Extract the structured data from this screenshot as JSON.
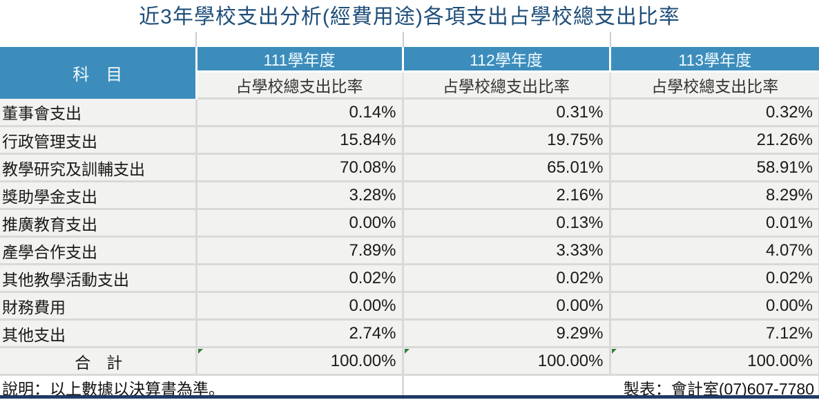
{
  "page": {
    "title": "近3年學校支出分析(經費用途)各項支出占學校總支出比率"
  },
  "table": {
    "corner_header": "科　目",
    "year_headers": [
      "111學年度",
      "112學年度",
      "113學年度"
    ],
    "sub_header": "占學校總支出比率",
    "rows": [
      {
        "label": "董事會支出",
        "values": [
          "0.14%",
          "0.31%",
          "0.32%"
        ]
      },
      {
        "label": "行政管理支出",
        "values": [
          "15.84%",
          "19.75%",
          "21.26%"
        ]
      },
      {
        "label": "教學研究及訓輔支出",
        "values": [
          "70.08%",
          "65.01%",
          "58.91%"
        ]
      },
      {
        "label": "獎助學金支出",
        "values": [
          "3.28%",
          "2.16%",
          "8.29%"
        ]
      },
      {
        "label": "推廣教育支出",
        "values": [
          "0.00%",
          "0.13%",
          "0.01%"
        ]
      },
      {
        "label": "產學合作支出",
        "values": [
          "7.89%",
          "3.33%",
          "4.07%"
        ]
      },
      {
        "label": "其他教學活動支出",
        "values": [
          "0.02%",
          "0.02%",
          "0.02%"
        ]
      },
      {
        "label": "財務費用",
        "values": [
          "0.00%",
          "0.00%",
          "0.00%"
        ]
      },
      {
        "label": "其他支出",
        "values": [
          "2.74%",
          "9.29%",
          "7.12%"
        ]
      }
    ],
    "total": {
      "label": "合　計",
      "values": [
        "100.00%",
        "100.00%",
        "100.00%"
      ]
    }
  },
  "footer": {
    "note": "說明：以上數據以決算書為準。",
    "prepared_by": "製表：會計室(07)607-7780"
  },
  "colors": {
    "title_text": "#1F4E79",
    "header_fill": "#3C8DBC",
    "header_text": "#F2FAFE",
    "cell_fill": "#F2F2F0",
    "grid_line": "#D9D9D9",
    "comment_triangle": "#2F7D31",
    "bottom_bar": "#1F3B64"
  },
  "chart_data": {
    "type": "table",
    "title": "近3年學校支出分析(經費用途)各項支出占學校總支出比率",
    "columns": [
      "科目",
      "111學年度 占學校總支出比率",
      "112學年度 占學校總支出比率",
      "113學年度 占學校總支出比率"
    ],
    "rows": [
      [
        "董事會支出",
        "0.14%",
        "0.31%",
        "0.32%"
      ],
      [
        "行政管理支出",
        "15.84%",
        "19.75%",
        "21.26%"
      ],
      [
        "教學研究及訓輔支出",
        "70.08%",
        "65.01%",
        "58.91%"
      ],
      [
        "獎助學金支出",
        "3.28%",
        "2.16%",
        "8.29%"
      ],
      [
        "推廣教育支出",
        "0.00%",
        "0.13%",
        "0.01%"
      ],
      [
        "產學合作支出",
        "7.89%",
        "3.33%",
        "4.07%"
      ],
      [
        "其他教學活動支出",
        "0.02%",
        "0.02%",
        "0.02%"
      ],
      [
        "財務費用",
        "0.00%",
        "0.00%",
        "0.00%"
      ],
      [
        "其他支出",
        "2.74%",
        "9.29%",
        "7.12%"
      ],
      [
        "合計",
        "100.00%",
        "100.00%",
        "100.00%"
      ]
    ]
  }
}
